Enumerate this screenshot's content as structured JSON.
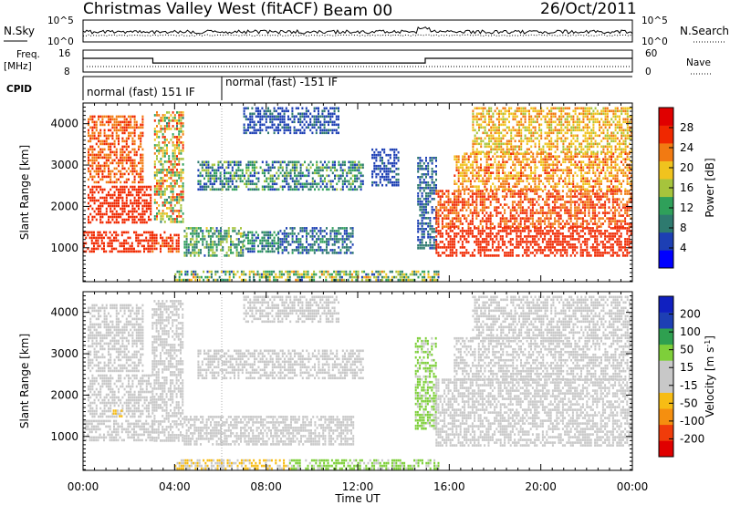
{
  "header": {
    "station_title": "Christmas Valley West (fitACF)",
    "beam_label": "Beam 00",
    "date": "26/Oct/2011"
  },
  "top_panel": {
    "n_sky_label": "N.Sky",
    "n_search_label": "N.Search",
    "noise_tick_high": "10^5",
    "noise_tick_low": "10^0",
    "freq_label": "Freq.",
    "freq_unit": "[MHz]",
    "freq_tick_high": "16",
    "freq_tick_low": "8",
    "nave_label": "Nave",
    "nave_tick_high": "60",
    "nave_tick_low": "0",
    "cpid_label": "CPID",
    "cpid_segments": [
      {
        "text": "normal (fast) 151 IF",
        "start_hour": 0,
        "end_hour": 6.0
      },
      {
        "text": "normal (fast) -151 IF",
        "start_hour": 6.0,
        "end_hour": 24
      }
    ],
    "freq_series": {
      "hours": [
        0,
        3.05,
        3.05,
        14.95,
        14.95,
        24
      ],
      "mhz": [
        13,
        13,
        11.3,
        11.3,
        13,
        13
      ]
    },
    "nave_series": {
      "value": 15
    }
  },
  "chart_data": [
    {
      "type": "heatmap",
      "title": "",
      "xlabel": "Time UT",
      "ylabel": "Slant Range [km]",
      "xlim_hours": [
        0,
        24
      ],
      "ylim_km": [
        180,
        4500
      ],
      "x_ticks": [
        "00:00",
        "04:00",
        "08:00",
        "12:00",
        "16:00",
        "20:00",
        "00:00"
      ],
      "y_ticks": [
        1000,
        2000,
        3000,
        4000
      ],
      "colorbar": {
        "label": "Power [dB]",
        "ticks": [
          4,
          8,
          12,
          16,
          20,
          24,
          28
        ],
        "range": [
          0,
          32
        ],
        "colors": [
          "#0000ff",
          "#1d3fb4",
          "#2e7a6f",
          "#2fa05a",
          "#a6c43c",
          "#f0c31e",
          "#f27a12",
          "#f02800",
          "#e00000"
        ]
      },
      "echo_regions": [
        {
          "t0": 0.0,
          "t1": 3.0,
          "r0": 900,
          "r1": 1400,
          "v0": 28,
          "v1": 28
        },
        {
          "t0": 0.2,
          "t1": 3.0,
          "r0": 1600,
          "r1": 2500,
          "v0": 25,
          "v1": 28
        },
        {
          "t0": 0.2,
          "t1": 2.6,
          "r0": 2600,
          "r1": 4200,
          "v0": 22,
          "v1": 27
        },
        {
          "t0": 3.0,
          "t1": 4.2,
          "r0": 900,
          "r1": 1400,
          "v0": 24,
          "v1": 28
        },
        {
          "t0": 3.1,
          "t1": 4.4,
          "r0": 1600,
          "r1": 4300,
          "v0": 10,
          "v1": 28
        },
        {
          "t0": 4.4,
          "t1": 7.0,
          "r0": 800,
          "r1": 1500,
          "v0": 6,
          "v1": 18
        },
        {
          "t0": 7.0,
          "t1": 8.5,
          "r0": 900,
          "r1": 1400,
          "v0": 6,
          "v1": 14
        },
        {
          "t0": 8.5,
          "t1": 11.8,
          "r0": 900,
          "r1": 1500,
          "v0": 4,
          "v1": 12
        },
        {
          "t0": 5.0,
          "t1": 12.2,
          "r0": 2400,
          "r1": 3100,
          "v0": 4,
          "v1": 16
        },
        {
          "t0": 12.6,
          "t1": 13.8,
          "r0": 2500,
          "r1": 3400,
          "v0": 4,
          "v1": 8
        },
        {
          "t0": 7.0,
          "t1": 11.2,
          "r0": 3800,
          "r1": 4400,
          "v0": 4,
          "v1": 8
        },
        {
          "t0": 4.0,
          "t1": 15.5,
          "r0": 200,
          "r1": 450,
          "v0": 6,
          "v1": 22
        },
        {
          "t0": 14.6,
          "t1": 15.4,
          "r0": 1000,
          "r1": 3200,
          "v0": 4,
          "v1": 10
        },
        {
          "t0": 15.4,
          "t1": 24.0,
          "r0": 800,
          "r1": 1500,
          "v0": 26,
          "v1": 28
        },
        {
          "t0": 15.4,
          "t1": 24.0,
          "r0": 1500,
          "r1": 2400,
          "v0": 22,
          "v1": 28
        },
        {
          "t0": 16.2,
          "t1": 24.0,
          "r0": 2400,
          "r1": 3300,
          "v0": 18,
          "v1": 26
        },
        {
          "t0": 17.0,
          "t1": 24.0,
          "r0": 3300,
          "r1": 4400,
          "v0": 16,
          "v1": 24
        }
      ]
    },
    {
      "type": "heatmap",
      "title": "",
      "xlabel": "Time UT",
      "ylabel": "Slant Range [km]",
      "xlim_hours": [
        0,
        24
      ],
      "ylim_km": [
        180,
        4500
      ],
      "x_ticks": [
        "00:00",
        "04:00",
        "08:00",
        "12:00",
        "16:00",
        "20:00",
        "00:00"
      ],
      "y_ticks": [
        1000,
        2000,
        3000,
        4000
      ],
      "colorbar": {
        "label": "Velocity [m s^-1]",
        "ticks": [
          200,
          100,
          50,
          15,
          -15,
          -50,
          -100,
          -200
        ],
        "range": [
          -250,
          250
        ],
        "colors": [
          "#e00000",
          "#f03c0a",
          "#f58f0f",
          "#f7bc14",
          "#c8c8c8",
          "#c8c8c8",
          "#7ecf3a",
          "#2fa050",
          "#1d3fb4",
          "#1020c0"
        ]
      },
      "echo_regions": [
        {
          "t0": 0.0,
          "t1": 3.0,
          "r0": 900,
          "r1": 1400,
          "v0": -10,
          "v1": 10
        },
        {
          "t0": 0.2,
          "t1": 3.0,
          "r0": 1500,
          "r1": 2500,
          "v0": -10,
          "v1": 10
        },
        {
          "t0": 0.2,
          "t1": 2.6,
          "r0": 2600,
          "r1": 4200,
          "v0": -10,
          "v1": 10
        },
        {
          "t0": 1.3,
          "t1": 1.7,
          "r0": 1500,
          "r1": 1650,
          "v0": -40,
          "v1": -60
        },
        {
          "t0": 3.0,
          "t1": 4.4,
          "r0": 900,
          "r1": 4300,
          "v0": -10,
          "v1": 10
        },
        {
          "t0": 4.4,
          "t1": 11.8,
          "r0": 800,
          "r1": 1500,
          "v0": -10,
          "v1": 10
        },
        {
          "t0": 5.0,
          "t1": 12.2,
          "r0": 2400,
          "r1": 3100,
          "v0": -10,
          "v1": 10
        },
        {
          "t0": 7.0,
          "t1": 11.2,
          "r0": 3800,
          "r1": 4400,
          "v0": -10,
          "v1": 10
        },
        {
          "t0": 4.0,
          "t1": 9.0,
          "r0": 200,
          "r1": 450,
          "v0": -40,
          "v1": -60
        },
        {
          "t0": 9.0,
          "t1": 15.5,
          "r0": 200,
          "r1": 450,
          "v0": 40,
          "v1": 80
        },
        {
          "t0": 14.5,
          "t1": 15.4,
          "r0": 1200,
          "r1": 3400,
          "v0": 40,
          "v1": 80
        },
        {
          "t0": 15.4,
          "t1": 24.0,
          "r0": 800,
          "r1": 2400,
          "v0": -10,
          "v1": 10
        },
        {
          "t0": 16.2,
          "t1": 24.0,
          "r0": 2400,
          "r1": 3400,
          "v0": -10,
          "v1": 10
        },
        {
          "t0": 17.0,
          "t1": 24.0,
          "r0": 3400,
          "r1": 4400,
          "v0": -10,
          "v1": 10
        }
      ]
    }
  ]
}
